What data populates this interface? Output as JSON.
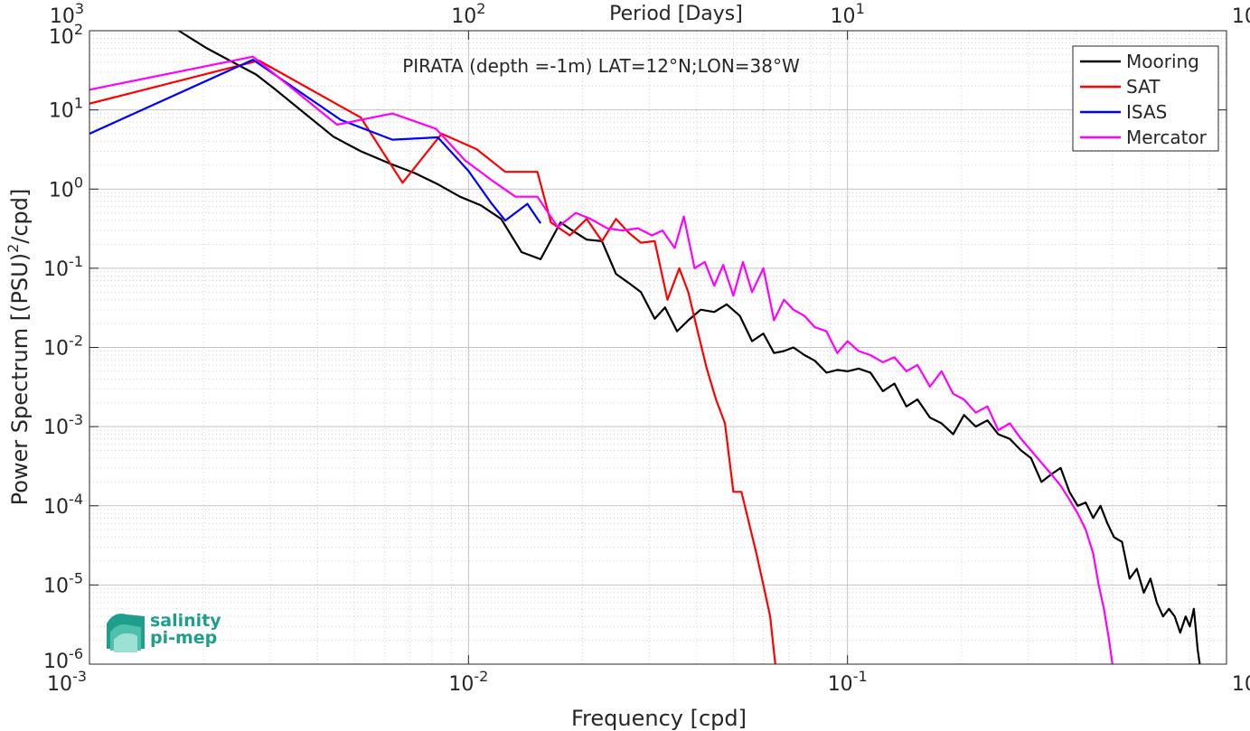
{
  "chart_data": {
    "type": "line",
    "title": "PIRATA (depth =-1m) LAT=12°N;LON=38°W",
    "xlabel": "Frequency [cpd]",
    "ylabel_main": "Power Spectrum [(PSU)",
    "ylabel_sup": "2",
    "ylabel_tail": "/cpd]",
    "x2label": "Period [Days]",
    "x_scale": "log",
    "y_scale": "log",
    "xlim": [
      0.001,
      1
    ],
    "ylim": [
      1e-06,
      100
    ],
    "grid": true,
    "legend_position": "top-right",
    "x_ticks": [
      {
        "value": 0.001,
        "base": "10",
        "exp": "-3"
      },
      {
        "value": 0.01,
        "base": "10",
        "exp": "-2"
      },
      {
        "value": 0.1,
        "base": "10",
        "exp": "-1"
      },
      {
        "value": 1,
        "base": "10",
        "exp": "0"
      }
    ],
    "x2_ticks": [
      {
        "value": 0.001,
        "base": "10",
        "exp": "3"
      },
      {
        "value": 0.01,
        "base": "10",
        "exp": "2"
      },
      {
        "value": 0.1,
        "base": "10",
        "exp": "1"
      },
      {
        "value": 1,
        "base": "10",
        "exp": "0"
      }
    ],
    "y_ticks": [
      {
        "value": 100,
        "base": "10",
        "exp": "2"
      },
      {
        "value": 10,
        "base": "10",
        "exp": "1"
      },
      {
        "value": 1,
        "base": "10",
        "exp": "0"
      },
      {
        "value": 0.1,
        "base": "10",
        "exp": "-1"
      },
      {
        "value": 0.01,
        "base": "10",
        "exp": "-2"
      },
      {
        "value": 0.001,
        "base": "10",
        "exp": "-3"
      },
      {
        "value": 0.0001,
        "base": "10",
        "exp": "-4"
      },
      {
        "value": 1e-05,
        "base": "10",
        "exp": "-5"
      },
      {
        "value": 1e-06,
        "base": "10",
        "exp": "-6"
      }
    ],
    "series": [
      {
        "name": "Mooring",
        "color": "#000000",
        "x": [
          0.00172,
          0.00204,
          0.00244,
          0.00275,
          0.0031,
          0.0037,
          0.0044,
          0.0052,
          0.0062,
          0.0072,
          0.0083,
          0.0095,
          0.0108,
          0.0122,
          0.0138,
          0.0155,
          0.0175,
          0.0188,
          0.0205,
          0.0225,
          0.0245,
          0.0265,
          0.0285,
          0.031,
          0.033,
          0.0355,
          0.038,
          0.041,
          0.0445,
          0.048,
          0.052,
          0.056,
          0.06,
          0.064,
          0.068,
          0.072,
          0.077,
          0.082,
          0.088,
          0.094,
          0.1,
          0.107,
          0.115,
          0.124,
          0.133,
          0.143,
          0.153,
          0.165,
          0.177,
          0.19,
          0.203,
          0.218,
          0.234,
          0.25,
          0.268,
          0.287,
          0.305,
          0.325,
          0.345,
          0.365,
          0.385,
          0.405,
          0.425,
          0.445,
          0.465,
          0.485,
          0.505,
          0.53,
          0.555,
          0.58,
          0.605,
          0.63,
          0.655,
          0.68,
          0.705,
          0.73,
          0.755,
          0.78,
          0.8,
          0.82,
          0.84,
          0.85
        ],
        "y": [
          100,
          60,
          38,
          28,
          18,
          9,
          4.6,
          3.0,
          2.1,
          1.6,
          1.15,
          0.8,
          0.62,
          0.42,
          0.16,
          0.13,
          0.38,
          0.3,
          0.23,
          0.22,
          0.085,
          0.065,
          0.05,
          0.023,
          0.032,
          0.016,
          0.022,
          0.03,
          0.028,
          0.035,
          0.025,
          0.012,
          0.015,
          0.0085,
          0.009,
          0.01,
          0.008,
          0.0068,
          0.0048,
          0.0052,
          0.005,
          0.0054,
          0.0048,
          0.0028,
          0.0035,
          0.0018,
          0.0022,
          0.0013,
          0.0011,
          0.0008,
          0.0014,
          0.001,
          0.0012,
          0.0008,
          0.0007,
          0.0005,
          0.0004,
          0.0002,
          0.00025,
          0.0003,
          0.00015,
          0.0001,
          0.00011,
          7e-05,
          0.0001,
          6e-05,
          4e-05,
          3.5e-05,
          1.2e-05,
          1.6e-05,
          8e-06,
          1.2e-05,
          6e-06,
          4e-06,
          5e-06,
          4e-06,
          2.5e-06,
          4e-06,
          3e-06,
          5e-06,
          1.5e-06,
          1e-06
        ]
      },
      {
        "name": "SAT",
        "color": "#ff0000",
        "x": [
          0.001,
          0.0028,
          0.0052,
          0.0067,
          0.0085,
          0.0105,
          0.0125,
          0.0152,
          0.0165,
          0.0185,
          0.0205,
          0.0225,
          0.0245,
          0.0265,
          0.0285,
          0.031,
          0.0335,
          0.036,
          0.038,
          0.04,
          0.0425,
          0.045,
          0.0475,
          0.05,
          0.0525,
          0.055,
          0.0575,
          0.06,
          0.0625,
          0.0645
        ],
        "y": [
          12,
          42,
          8,
          1.2,
          5,
          3.2,
          1.65,
          1.65,
          0.38,
          0.26,
          0.42,
          0.22,
          0.42,
          0.28,
          0.21,
          0.22,
          0.04,
          0.1,
          0.05,
          0.018,
          0.0055,
          0.0022,
          0.0011,
          0.00015,
          0.00015,
          6e-05,
          2.5e-05,
          1e-05,
          4e-06,
          1e-06
        ]
      },
      {
        "name": "ISAS",
        "color": "#0000ff",
        "x": [
          0.001,
          0.0027,
          0.0046,
          0.0063,
          0.0083,
          0.01,
          0.0115,
          0.0125,
          0.0143,
          0.0155
        ],
        "y": [
          5,
          43,
          7.5,
          4.2,
          4.5,
          1.7,
          0.66,
          0.4,
          0.65,
          0.37
        ]
      },
      {
        "name": "Mercator",
        "color": "#ff00ff",
        "x": [
          0.001,
          0.0027,
          0.0045,
          0.0063,
          0.0082,
          0.0098,
          0.0115,
          0.0133,
          0.0152,
          0.0172,
          0.0192,
          0.021,
          0.0232,
          0.0255,
          0.028,
          0.0305,
          0.0325,
          0.035,
          0.037,
          0.0395,
          0.042,
          0.0445,
          0.047,
          0.05,
          0.053,
          0.056,
          0.06,
          0.064,
          0.068,
          0.072,
          0.077,
          0.082,
          0.088,
          0.094,
          0.1,
          0.107,
          0.115,
          0.124,
          0.133,
          0.143,
          0.153,
          0.165,
          0.177,
          0.19,
          0.203,
          0.218,
          0.234,
          0.25,
          0.268,
          0.287,
          0.305,
          0.325,
          0.345,
          0.365,
          0.385,
          0.405,
          0.425,
          0.445,
          0.46,
          0.475,
          0.49,
          0.5
        ],
        "y": [
          18,
          47,
          6.5,
          9,
          5.8,
          2.3,
          1.3,
          0.8,
          0.8,
          0.33,
          0.5,
          0.42,
          0.32,
          0.3,
          0.32,
          0.26,
          0.3,
          0.18,
          0.45,
          0.1,
          0.12,
          0.06,
          0.11,
          0.045,
          0.12,
          0.05,
          0.1,
          0.022,
          0.04,
          0.03,
          0.025,
          0.018,
          0.016,
          0.0085,
          0.012,
          0.009,
          0.008,
          0.0065,
          0.0075,
          0.005,
          0.006,
          0.0032,
          0.005,
          0.0026,
          0.0022,
          0.0015,
          0.0018,
          0.0009,
          0.0011,
          0.0007,
          0.0005,
          0.00035,
          0.00025,
          0.00018,
          0.00012,
          8e-05,
          5e-05,
          2.5e-05,
          1e-05,
          5e-06,
          2e-06,
          1e-06
        ]
      }
    ],
    "logo": {
      "line1": "salinity",
      "line2": "pi-mep"
    }
  }
}
